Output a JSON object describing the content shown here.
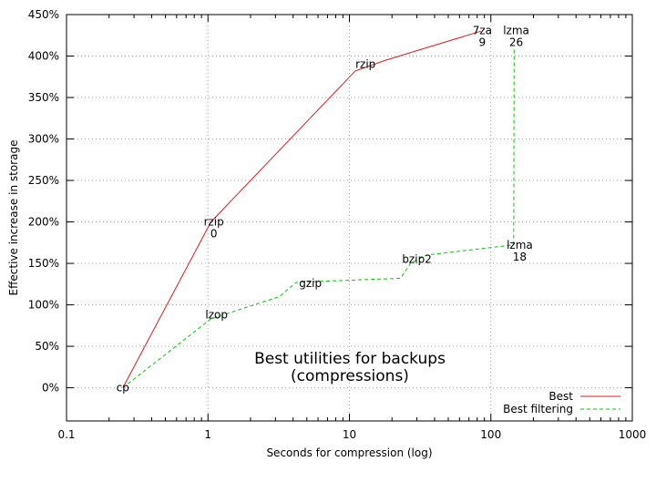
{
  "chart_data": {
    "type": "line",
    "title": "Best utilities for backups\n(compressions)",
    "xlabel": "Seconds for compression (log)",
    "ylabel": "Effective increase in storage",
    "x_scale": "log",
    "xlim": [
      0.1,
      1000
    ],
    "ylim": [
      -40,
      450
    ],
    "x_ticks": [
      0.1,
      1,
      10,
      100,
      1000
    ],
    "x_tick_labels": [
      "0.1",
      "1",
      "10",
      "100",
      "1000"
    ],
    "y_ticks": [
      0,
      50,
      100,
      150,
      200,
      250,
      300,
      350,
      400,
      450
    ],
    "y_tick_labels": [
      "0%",
      "50%",
      "100%",
      "150%",
      "200%",
      "250%",
      "300%",
      "350%",
      "400%",
      "450%"
    ],
    "grid": true,
    "legend_position": "bottom-right",
    "series": [
      {
        "name": "Best",
        "color": "#e41a1c",
        "style": "solid",
        "x": [
          0.25,
          1.05,
          11,
          18,
          85
        ],
        "y": [
          0,
          200,
          382,
          395,
          430
        ]
      },
      {
        "name": "Best filtering",
        "color": "#00cc00",
        "style": "dashed",
        "x": [
          0.25,
          1.05,
          3.2,
          4.2,
          5.5,
          23,
          27,
          35,
          140,
          145,
          146
        ],
        "y": [
          0,
          83,
          110,
          127,
          128,
          132,
          150,
          160,
          172,
          173,
          410
        ]
      }
    ],
    "annotations": [
      {
        "lines": [
          "cp"
        ],
        "x": 0.25,
        "y": 0
      },
      {
        "lines": [
          "lzop"
        ],
        "x": 1.15,
        "y": 88
      },
      {
        "lines": [
          "rzip",
          "0"
        ],
        "x": 1.1,
        "y": 200
      },
      {
        "lines": [
          "gzip"
        ],
        "x": 5.3,
        "y": 126
      },
      {
        "lines": [
          "rzip"
        ],
        "x": 13,
        "y": 390
      },
      {
        "lines": [
          "bzip2"
        ],
        "x": 30,
        "y": 155
      },
      {
        "lines": [
          "7za",
          "9"
        ],
        "x": 87,
        "y": 431
      },
      {
        "lines": [
          "lzma",
          "18"
        ],
        "x": 160,
        "y": 172
      },
      {
        "lines": [
          "lzma",
          "26"
        ],
        "x": 151,
        "y": 431
      }
    ]
  }
}
